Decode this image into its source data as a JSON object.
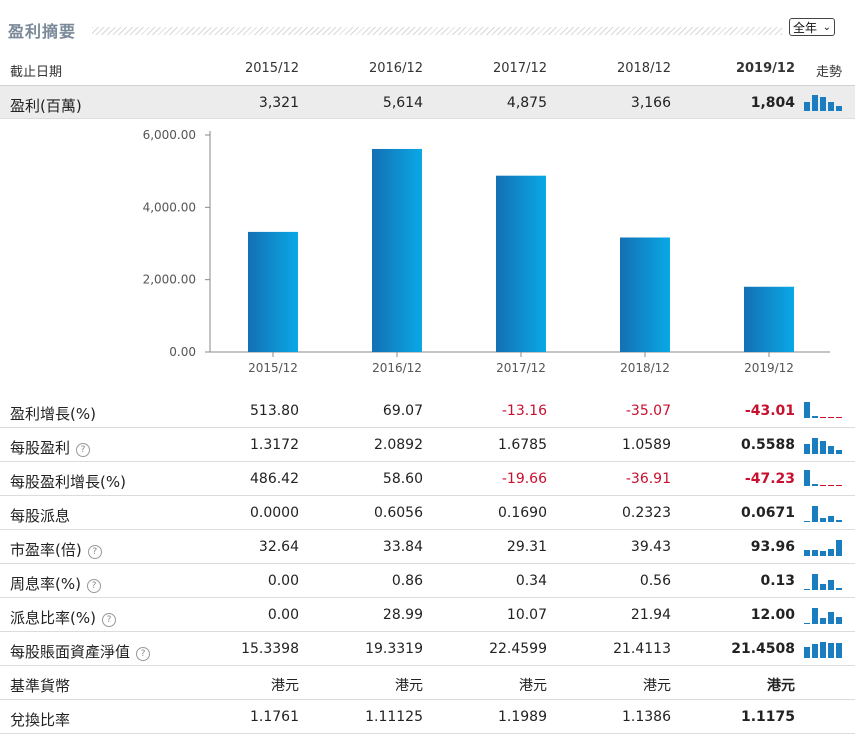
{
  "title": "盈利摘要",
  "period_select": {
    "value": "全年"
  },
  "header": {
    "label": "截止日期",
    "years": [
      "2015/12",
      "2016/12",
      "2017/12",
      "2018/12",
      "2019/12"
    ],
    "trend": "走勢"
  },
  "colors": {
    "bar": "#1a8fd0",
    "negative": "#c8102e",
    "spark": "#1a7dc0",
    "spark_neg": "#c8102e"
  },
  "rows": [
    {
      "label": "盈利(百萬)",
      "help": false,
      "values": [
        "3,321",
        "5,614",
        "4,875",
        "3,166",
        "1,804"
      ],
      "neg": [
        false,
        false,
        false,
        false,
        false
      ],
      "spark": [
        0.59,
        1.0,
        0.87,
        0.56,
        0.32
      ]
    },
    {
      "label": "盈利增長(%)",
      "help": false,
      "values": [
        "513.80",
        "69.07",
        "-13.16",
        "-35.07",
        "-43.01"
      ],
      "neg": [
        false,
        false,
        true,
        true,
        true
      ],
      "spark": [
        1.0,
        0.13,
        -0.03,
        -0.07,
        -0.08
      ]
    },
    {
      "label": "每股盈利",
      "help": true,
      "values": [
        "1.3172",
        "2.0892",
        "1.6785",
        "1.0589",
        "0.5588"
      ],
      "neg": [
        false,
        false,
        false,
        false,
        false
      ],
      "spark": [
        0.63,
        1.0,
        0.8,
        0.51,
        0.27
      ]
    },
    {
      "label": "每股盈利增長(%)",
      "help": false,
      "values": [
        "486.42",
        "58.60",
        "-19.66",
        "-36.91",
        "-47.23"
      ],
      "neg": [
        false,
        false,
        true,
        true,
        true
      ],
      "spark": [
        1.0,
        0.12,
        -0.04,
        -0.08,
        -0.1
      ]
    },
    {
      "label": "每股派息",
      "help": false,
      "values": [
        "0.0000",
        "0.6056",
        "0.1690",
        "0.2323",
        "0.0671"
      ],
      "neg": [
        false,
        false,
        false,
        false,
        false
      ],
      "spark": [
        0.0,
        1.0,
        0.28,
        0.38,
        0.11
      ]
    },
    {
      "label": "市盈率(倍)",
      "help": true,
      "values": [
        "32.64",
        "33.84",
        "29.31",
        "39.43",
        "93.96"
      ],
      "neg": [
        false,
        false,
        false,
        false,
        false
      ],
      "spark": [
        0.35,
        0.36,
        0.31,
        0.42,
        1.0
      ]
    },
    {
      "label": "周息率(%)",
      "help": true,
      "values": [
        "0.00",
        "0.86",
        "0.34",
        "0.56",
        "0.13"
      ],
      "neg": [
        false,
        false,
        false,
        false,
        false
      ],
      "spark": [
        0.0,
        1.0,
        0.4,
        0.65,
        0.15
      ]
    },
    {
      "label": "派息比率(%)",
      "help": true,
      "values": [
        "0.00",
        "28.99",
        "10.07",
        "21.94",
        "12.00"
      ],
      "neg": [
        false,
        false,
        false,
        false,
        false
      ],
      "spark": [
        0.0,
        1.0,
        0.35,
        0.76,
        0.41
      ]
    },
    {
      "label": "每股賬面資產淨值",
      "help": true,
      "values": [
        "15.3398",
        "19.3319",
        "22.4599",
        "21.4113",
        "21.4508"
      ],
      "neg": [
        false,
        false,
        false,
        false,
        false
      ],
      "spark": [
        0.68,
        0.86,
        1.0,
        0.95,
        0.96
      ]
    },
    {
      "label": "基準貨幣",
      "help": false,
      "values": [
        "港元",
        "港元",
        "港元",
        "港元",
        "港元"
      ],
      "neg": [
        false,
        false,
        false,
        false,
        false
      ],
      "spark": []
    },
    {
      "label": "兌換比率",
      "help": false,
      "values": [
        "1.1761",
        "1.11125",
        "1.1989",
        "1.1386",
        "1.1175"
      ],
      "neg": [
        false,
        false,
        false,
        false,
        false
      ],
      "spark": []
    }
  ],
  "chart_data": {
    "type": "bar",
    "categories": [
      "2015/12",
      "2016/12",
      "2017/12",
      "2018/12",
      "2019/12"
    ],
    "values": [
      3321,
      5614,
      4875,
      3166,
      1804
    ],
    "ylim": [
      0,
      6000
    ],
    "yticks": [
      "0.00",
      "2,000.00",
      "4,000.00",
      "6,000.00"
    ],
    "ytick_values": [
      0,
      2000,
      4000,
      6000
    ],
    "grid": false,
    "title": "",
    "xlabel": "",
    "ylabel": ""
  }
}
